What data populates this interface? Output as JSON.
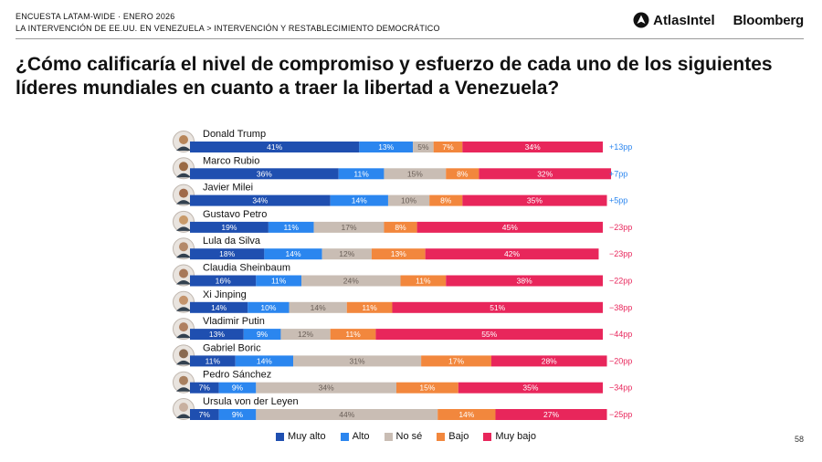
{
  "header": {
    "line1": "ENCUESTA LATAM-WIDE · ENERO 2026",
    "line2": "LA INTERVENCIÓN DE EE.UU. EN VENEZUELA > INTERVENCIÓN Y RESTABLECIMIENTO DEMOCRÁTICO",
    "brand_atlas": "AtlasIntel",
    "brand_bloomberg": "Bloomberg"
  },
  "page_number": "58",
  "colors": {
    "muy_alto": "#1f4fb0",
    "alto": "#2b86ef",
    "no_se": "#c9bdb4",
    "bajo": "#f2873d",
    "muy_bajo": "#e8265b",
    "positive_net": "#2b86ef",
    "negative_net": "#e8265b"
  },
  "chart_data": {
    "type": "bar",
    "orientation": "horizontal-stacked-100",
    "title": "¿Cómo calificaría el nivel de compromiso y esfuerzo de cada uno de los siguientes líderes mundiales en cuanto a traer la libertad a Venezuela?",
    "legend_position": "bottom",
    "categories": [
      "Donald Trump",
      "Marco Rubio",
      "Javier Milei",
      "Gustavo Petro",
      "Lula da Silva",
      "Claudia Sheinbaum",
      "Xi Jinping",
      "Vladimir Putin",
      "Gabriel Boric",
      "Pedro Sánchez",
      "Ursula von der Leyen"
    ],
    "series": [
      {
        "name": "Muy alto",
        "values": [
          41,
          36,
          34,
          19,
          18,
          16,
          14,
          13,
          11,
          7,
          7
        ]
      },
      {
        "name": "Alto",
        "values": [
          13,
          11,
          14,
          11,
          14,
          11,
          10,
          9,
          14,
          9,
          9
        ]
      },
      {
        "name": "No sé",
        "values": [
          5,
          15,
          10,
          17,
          12,
          24,
          14,
          12,
          31,
          34,
          44
        ]
      },
      {
        "name": "Bajo",
        "values": [
          7,
          8,
          8,
          8,
          13,
          11,
          11,
          11,
          17,
          15,
          14
        ]
      },
      {
        "name": "Muy bajo",
        "values": [
          34,
          32,
          35,
          45,
          42,
          38,
          51,
          55,
          28,
          35,
          27
        ]
      }
    ],
    "net_labels": [
      "+13pp",
      "+7pp",
      "+5pp",
      "−23pp",
      "−23pp",
      "−22pp",
      "−38pp",
      "−44pp",
      "−20pp",
      "−34pp",
      "−25pp"
    ]
  }
}
